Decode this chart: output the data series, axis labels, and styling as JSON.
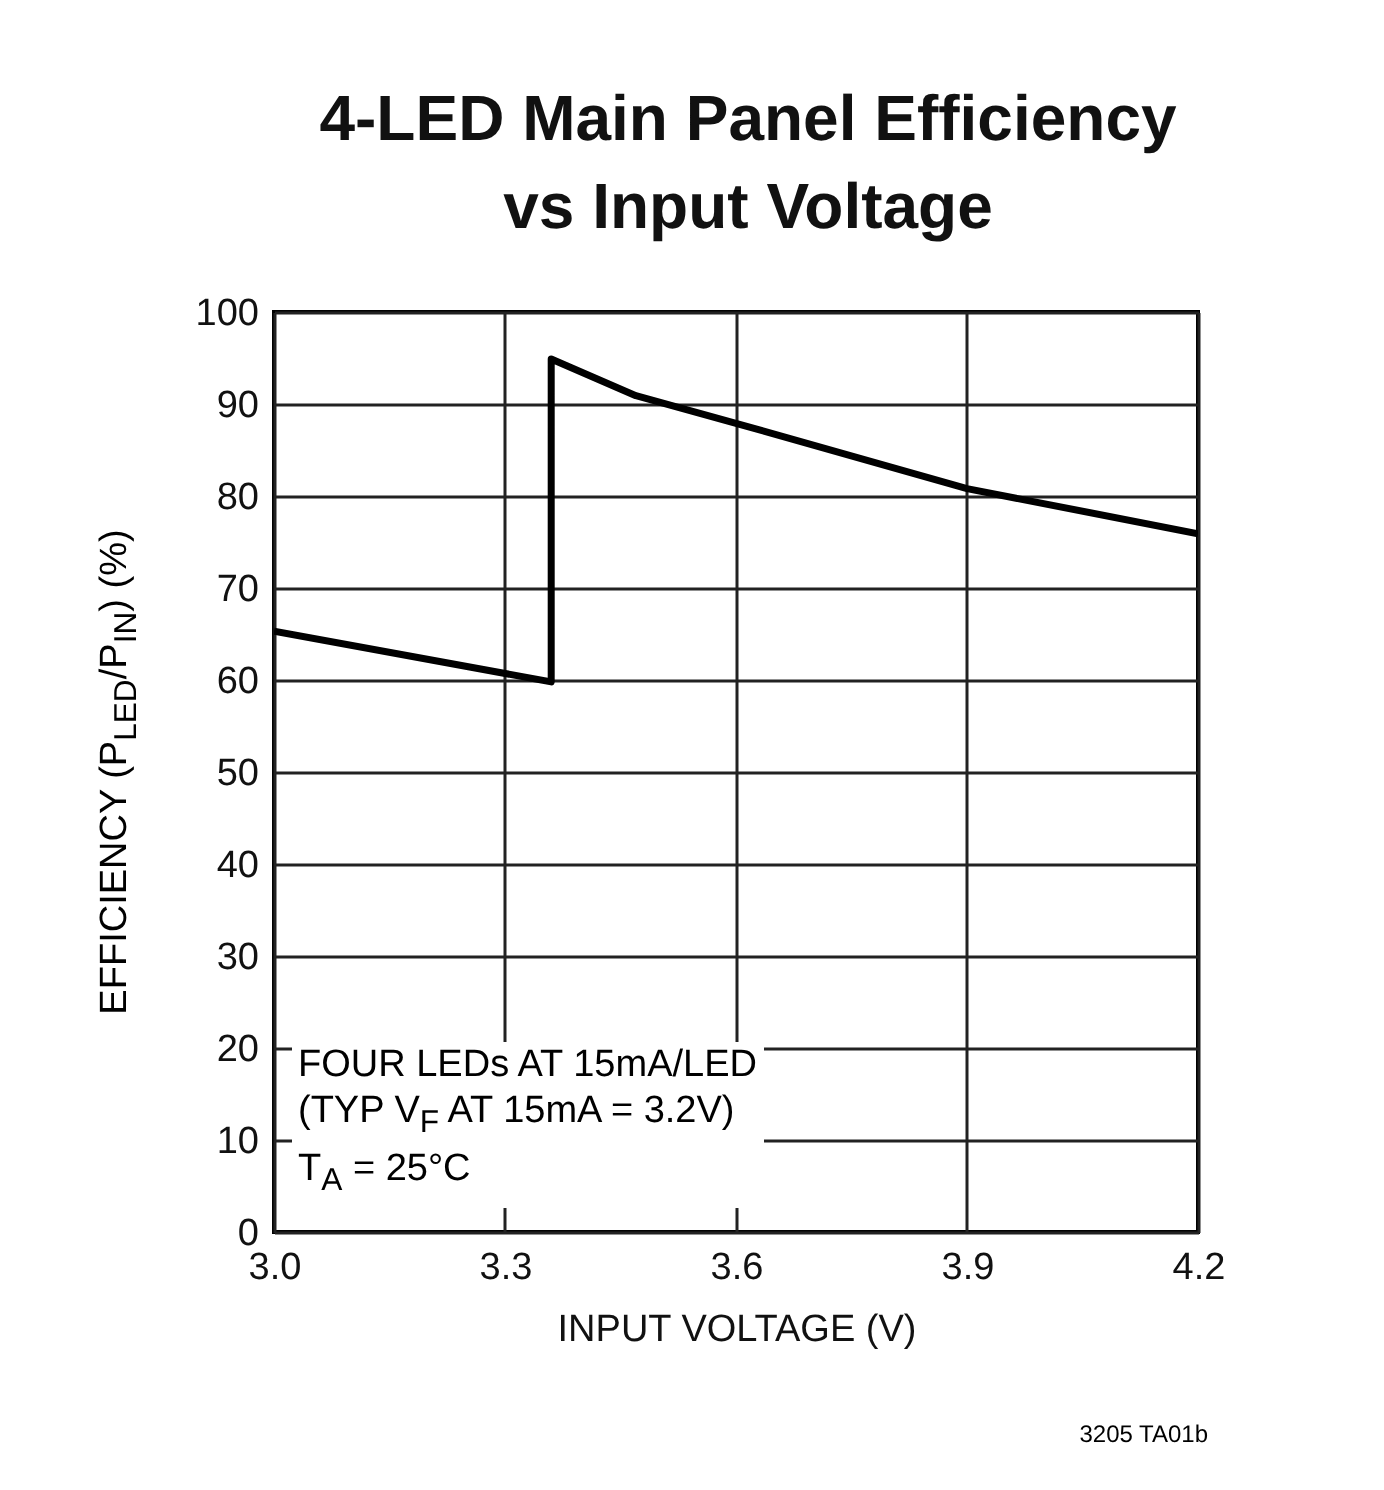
{
  "chart_data": {
    "type": "line",
    "title": "4-LED Main Panel Efficiency\nvs Input Voltage",
    "xlabel": "INPUT VOLTAGE (V)",
    "ylabel": "EFFICIENCY (P$_{LED}$/P$_{IN}$) (%)",
    "annotations": [
      "FOUR LEDs AT 15mA/LED",
      "(TYP V$_{F}$ AT 15mA = 3.2V)",
      "T$_{A}$ = 25°C",
      "3205 TA01b"
    ],
    "series": [
      {
        "color": "#000000",
        "x": [
          3.0,
          3.36,
          3.36,
          3.47,
          3.6,
          3.9,
          4.2
        ],
        "values": [
          65.3,
          59.8,
          94.9,
          90.9,
          87.9,
          80.8,
          75.9
        ]
      }
    ],
    "xlim": [
      3.0,
      4.2
    ],
    "xticks": [
      {
        "value": 3.0,
        "label": "3.0"
      },
      3.3,
      3.6,
      3.9,
      4.2
    ],
    "ylim": [
      0,
      100
    ],
    "yticks": [
      0,
      10,
      20,
      30,
      40,
      50,
      60,
      70,
      80,
      90,
      100
    ],
    "grid": true,
    "marker": "none",
    "line_style": "solid",
    "legend": false
  }
}
